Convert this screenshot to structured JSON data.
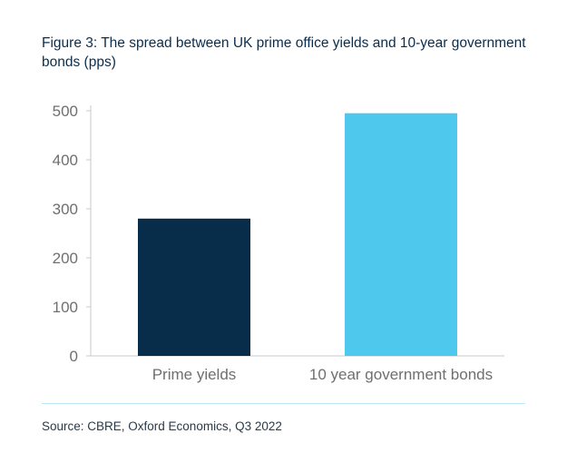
{
  "title": "Figure 3: The spread between UK prime office yields and 10-year government bonds (pps)",
  "source": "Source: CBRE, Oxford Economics, Q3 2022",
  "colors": {
    "series": [
      "#072d4a",
      "#4ec8ec"
    ],
    "axis": "#c8c8c8",
    "text": "#6f6f6f"
  },
  "chart_data": {
    "type": "bar",
    "categories": [
      "Prime yields",
      "10 year government bonds"
    ],
    "values": [
      280,
      495
    ],
    "ylim": [
      0,
      500
    ],
    "yticks": [
      0,
      100,
      200,
      300,
      400,
      500
    ],
    "grid": false,
    "legend": "none"
  }
}
